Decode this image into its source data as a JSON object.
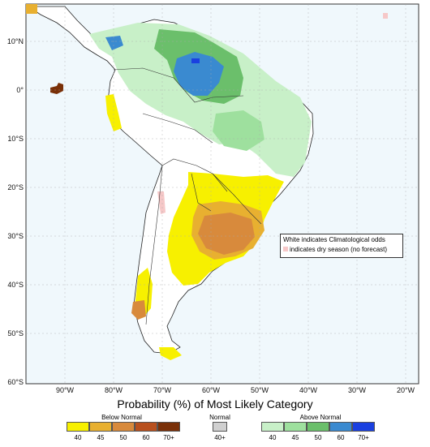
{
  "map": {
    "lat_labels": [
      "10°N",
      "0°",
      "10°S",
      "20°S",
      "30°S",
      "40°S",
      "50°S",
      "60°S"
    ],
    "lon_labels": [
      "90°W",
      "80°W",
      "70°W",
      "60°W",
      "50°W",
      "40°W",
      "30°W",
      "20°W"
    ],
    "notes": {
      "line1": "White indicates Climatological odds",
      "line2": "indicates dry season (no forecast)"
    }
  },
  "legend": {
    "title": "Probability (%) of Most Likely Category",
    "below": {
      "label": "Below Normal",
      "ticks": [
        "40",
        "45",
        "50",
        "60",
        "70+"
      ],
      "colors": [
        "#f7f000",
        "#e8b030",
        "#d88a3c",
        "#b8501e",
        "#7a3008"
      ]
    },
    "normal": {
      "label": "Normal",
      "ticks": [
        "40+"
      ],
      "colors": [
        "#d0d0d0"
      ]
    },
    "above": {
      "label": "Above Normal",
      "ticks": [
        "40",
        "45",
        "50",
        "60",
        "70+"
      ],
      "colors": [
        "#c8f0c8",
        "#9ee09e",
        "#6bbf6b",
        "#3a8ad0",
        "#1a40e0"
      ]
    },
    "dry_season_color": "#f6c8c8"
  }
}
